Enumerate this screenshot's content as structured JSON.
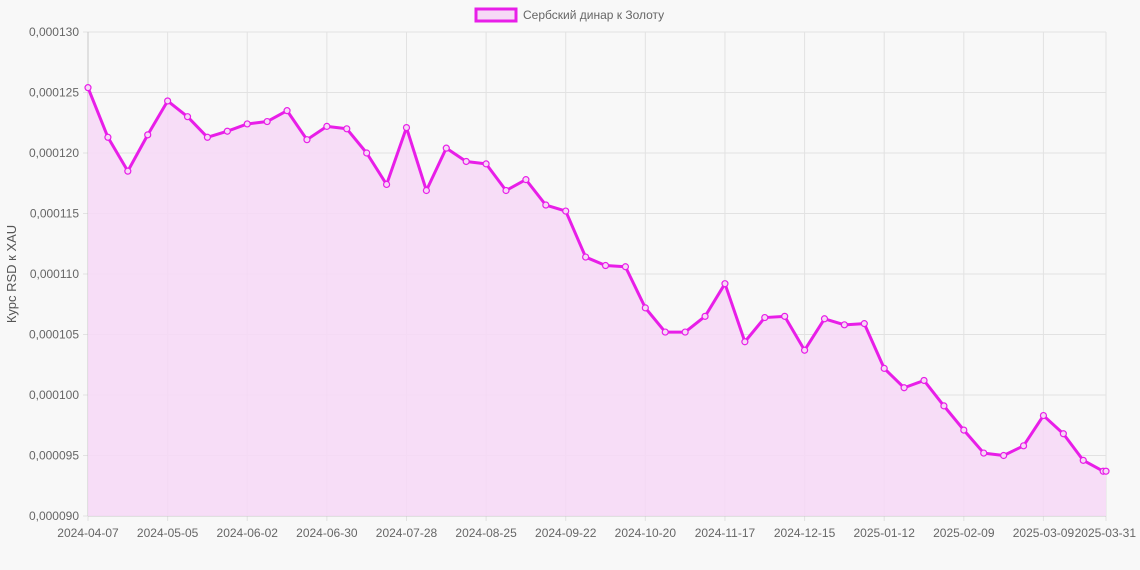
{
  "chart_data": {
    "type": "area",
    "legend": {
      "label": "Сербский динар к Золоту",
      "position": "top-center"
    },
    "ylabel": "Курс RSD к XAU",
    "xlabel": "",
    "ylim": [
      9e-05,
      0.00013
    ],
    "y_ticks": [
      "0,000090",
      "0,000095",
      "0,000100",
      "0,000105",
      "0,000110",
      "0,000115",
      "0,000120",
      "0,000125",
      "0,000130"
    ],
    "x_ticks": [
      "2024-04-07",
      "2024-05-05",
      "2024-06-02",
      "2024-06-30",
      "2024-07-28",
      "2024-08-25",
      "2024-09-22",
      "2024-10-20",
      "2024-11-17",
      "2024-12-15",
      "2025-01-12",
      "2025-02-09",
      "2025-03-09",
      "2025-03-31"
    ],
    "grid": true,
    "colors": {
      "line": "#e81ee8",
      "fill": "#f6d9f6",
      "grid": "#e2e2e2",
      "background": "#f8f8f8"
    },
    "x": [
      "2024-04-07",
      "2024-04-14",
      "2024-04-21",
      "2024-04-28",
      "2024-05-05",
      "2024-05-12",
      "2024-05-19",
      "2024-05-26",
      "2024-06-02",
      "2024-06-09",
      "2024-06-16",
      "2024-06-23",
      "2024-06-30",
      "2024-07-07",
      "2024-07-14",
      "2024-07-21",
      "2024-07-28",
      "2024-08-04",
      "2024-08-11",
      "2024-08-18",
      "2024-08-25",
      "2024-09-01",
      "2024-09-08",
      "2024-09-15",
      "2024-09-22",
      "2024-09-29",
      "2024-10-06",
      "2024-10-13",
      "2024-10-20",
      "2024-10-27",
      "2024-11-03",
      "2024-11-10",
      "2024-11-17",
      "2024-11-24",
      "2024-12-01",
      "2024-12-08",
      "2024-12-15",
      "2024-12-22",
      "2024-12-29",
      "2025-01-05",
      "2025-01-12",
      "2025-01-19",
      "2025-01-26",
      "2025-02-02",
      "2025-02-09",
      "2025-02-16",
      "2025-02-23",
      "2025-03-02",
      "2025-03-09",
      "2025-03-16",
      "2025-03-23",
      "2025-03-30",
      "2025-03-31"
    ],
    "series": [
      {
        "name": "Сербский динар к Золоту",
        "values": [
          0.0001254,
          0.0001213,
          0.0001185,
          0.0001215,
          0.0001243,
          0.000123,
          0.0001213,
          0.0001218,
          0.0001224,
          0.0001226,
          0.0001235,
          0.0001211,
          0.0001222,
          0.000122,
          0.00012,
          0.0001174,
          0.0001221,
          0.0001169,
          0.0001204,
          0.0001193,
          0.0001191,
          0.0001169,
          0.0001178,
          0.0001157,
          0.0001152,
          0.0001114,
          0.0001107,
          0.0001106,
          0.0001072,
          0.0001052,
          0.0001052,
          0.0001065,
          0.0001092,
          0.0001044,
          0.0001064,
          0.0001065,
          0.0001037,
          0.0001063,
          0.0001058,
          0.0001059,
          0.0001022,
          0.0001006,
          0.0001012,
          9.91e-05,
          9.71e-05,
          9.52e-05,
          9.5e-05,
          9.58e-05,
          9.83e-05,
          9.68e-05,
          9.46e-05,
          9.37e-05,
          9.37e-05
        ]
      }
    ]
  }
}
